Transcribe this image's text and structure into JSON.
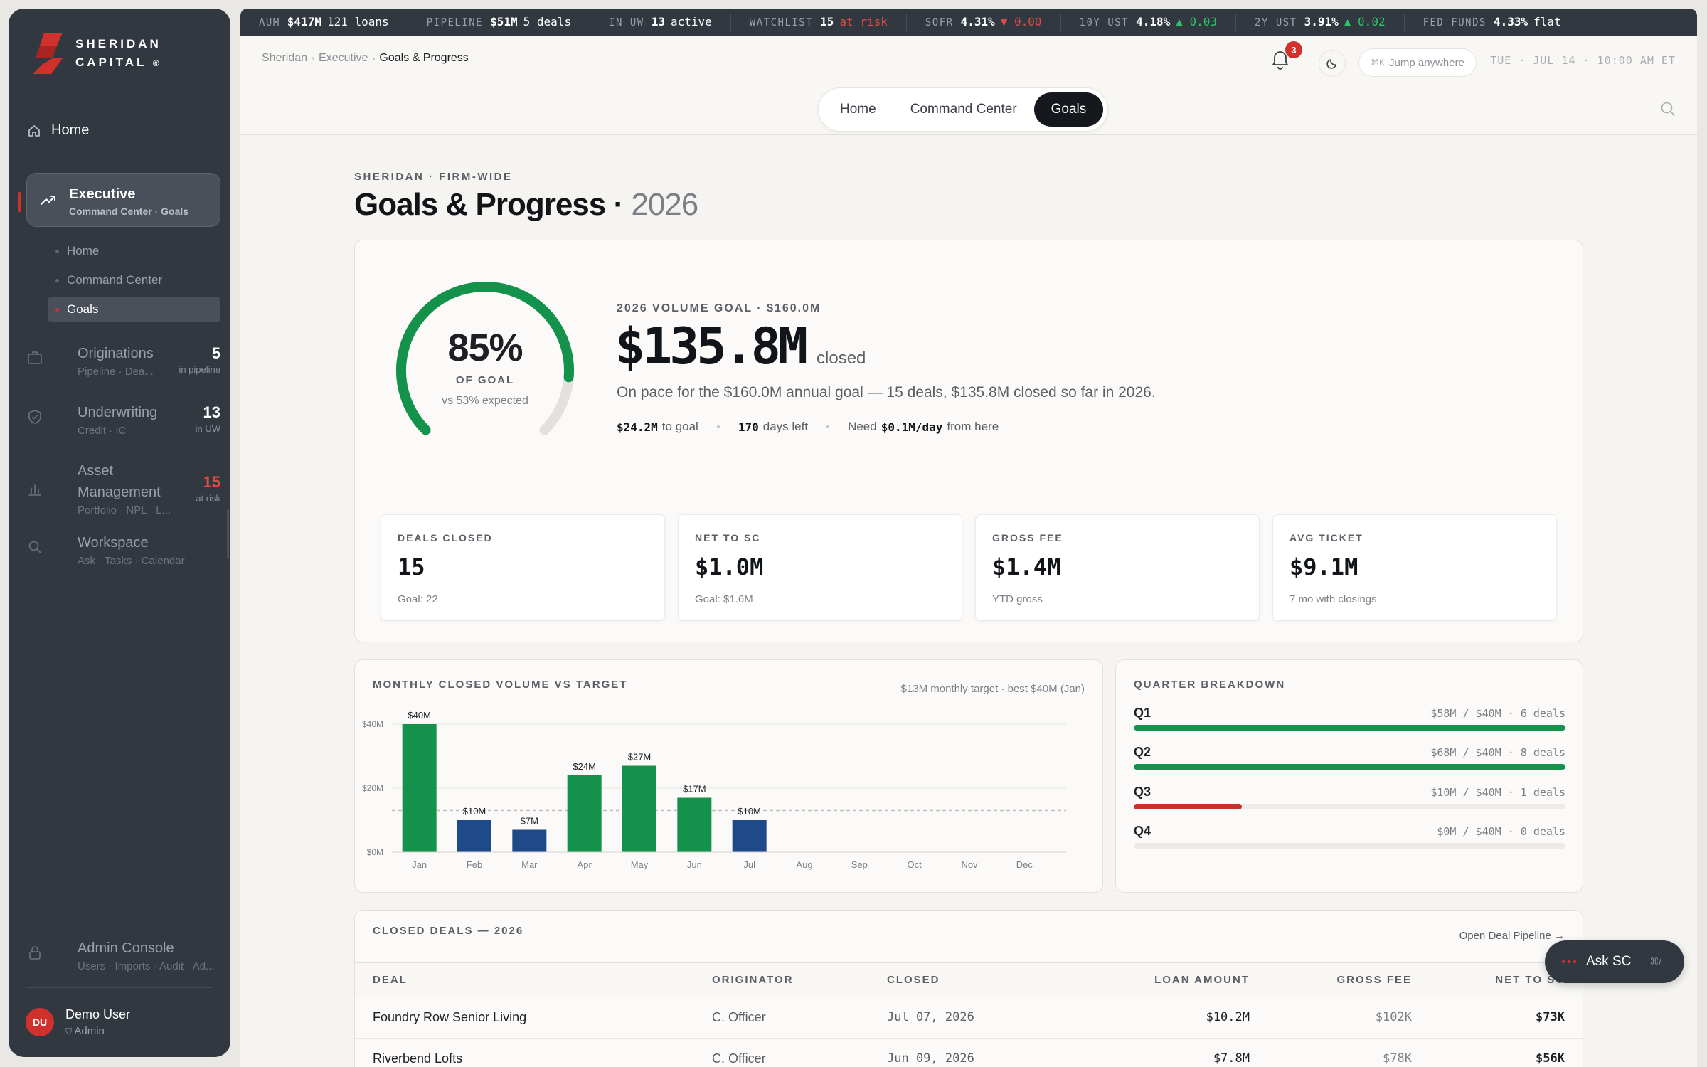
{
  "brand": {
    "line1": "SHERIDAN",
    "line2": "CAPITAL",
    "mark": "®"
  },
  "sidebar": {
    "home": "Home",
    "executive": {
      "label": "Executive",
      "sub": "Command Center · Goals"
    },
    "subitems": [
      "Home",
      "Command Center",
      "Goals"
    ],
    "groups": [
      {
        "label": "Originations",
        "sub": "Pipeline · Dea...",
        "count": "5",
        "count_label": "in pipeline"
      },
      {
        "label": "Underwriting",
        "sub": "Credit · IC",
        "count": "13",
        "count_label": "in UW"
      },
      {
        "label": "Asset Management",
        "sub": "Portfolio · NPL · L...",
        "count": "15",
        "count_label": "at risk"
      },
      {
        "label": "Workspace",
        "sub": "Ask · Tasks · Calendar",
        "count": "",
        "count_label": ""
      }
    ],
    "admin": {
      "label": "Admin Console",
      "sub": "Users · Imports · Audit · Ad..."
    },
    "user": {
      "initials": "DU",
      "name": "Demo User",
      "role": "Admin"
    }
  },
  "ticker": [
    {
      "label": "AUM",
      "value": "$417M",
      "extra": "121 loans",
      "tone": ""
    },
    {
      "label": "PIPELINE",
      "value": "$51M",
      "extra": "5 deals",
      "tone": ""
    },
    {
      "label": "IN UW",
      "value": "13",
      "extra": "active",
      "tone": ""
    },
    {
      "label": "WATCHLIST",
      "value": "15",
      "extra": "at risk",
      "tone": "red"
    },
    {
      "label": "SOFR",
      "value": "4.31%",
      "extra": "▼ 0.00",
      "tone": "red"
    },
    {
      "label": "10Y UST",
      "value": "4.18%",
      "extra": "▲ 0.03",
      "tone": "grn"
    },
    {
      "label": "2Y UST",
      "value": "3.91%",
      "extra": "▲ 0.02",
      "tone": "grn"
    },
    {
      "label": "FED FUNDS",
      "value": "4.33%",
      "extra": "flat",
      "tone": ""
    }
  ],
  "topbar": {
    "crumbs": [
      "Sheridan",
      "Executive",
      "Goals & Progress"
    ],
    "notifications": "3",
    "jump": "Jump anywhere",
    "jump_kbd": "⌘K",
    "clock": "TUE · JUL 14 · 10:00 AM ET",
    "tabs": [
      "Home",
      "Command Center",
      "Goals"
    ],
    "active_tab": "Goals"
  },
  "page": {
    "eyebrow": "SHERIDAN · FIRM-WIDE",
    "title": "Goals & Progress · ",
    "year": "2026"
  },
  "goal": {
    "pct_value": 0.85,
    "expected_value": 0.53,
    "pct": "85%",
    "of_goal": "OF GOAL",
    "vs": "vs 53% expected",
    "label": "2026 VOLUME GOAL · $160.0M",
    "amount": "$135.8M",
    "closed": "closed",
    "desc": "On pace for the $160.0M annual goal — 15 deals, $135.8M closed so far in 2026.",
    "to_goal_v": "$24.2M",
    "to_goal_l": "to goal",
    "days_v": "170",
    "days_l": "days left",
    "need_l": "Need",
    "need_v": "$0.1M/day",
    "need_l2": "from here"
  },
  "kpis": [
    {
      "label": "DEALS CLOSED",
      "value": "15",
      "sub": "Goal: 22"
    },
    {
      "label": "NET TO SC",
      "value": "$1.0M",
      "sub": "Goal: $1.6M"
    },
    {
      "label": "GROSS FEE",
      "value": "$1.4M",
      "sub": "YTD gross"
    },
    {
      "label": "AVG TICKET",
      "value": "$9.1M",
      "sub": "7 mo with closings"
    }
  ],
  "chart_title": "MONTHLY CLOSED VOLUME VS TARGET",
  "chart_note": "$13M monthly target · best $40M (Jan)",
  "chart_data": {
    "type": "bar",
    "title": "MONTHLY CLOSED VOLUME VS TARGET",
    "categories": [
      "Jan",
      "Feb",
      "Mar",
      "Apr",
      "May",
      "Jun",
      "Jul",
      "Aug",
      "Sep",
      "Oct",
      "Nov",
      "Dec"
    ],
    "values": [
      40,
      10,
      7,
      24,
      27,
      17,
      10,
      null,
      null,
      null,
      null,
      null
    ],
    "labels": [
      "$40M",
      "$10M",
      "$7M",
      "$24M",
      "$27M",
      "$17M",
      "$10M",
      "",
      "",
      "",
      "",
      ""
    ],
    "above_target": [
      true,
      false,
      false,
      true,
      true,
      true,
      false,
      false,
      false,
      false,
      false,
      false
    ],
    "target": 13,
    "ylim": [
      0,
      40
    ],
    "yticks": [
      "$0M",
      "$20M",
      "$40M"
    ],
    "ytick_values": [
      0,
      20,
      40
    ],
    "colors": {
      "above": "#14914a",
      "below": "#1f4a8a",
      "target": "#bdbdbd"
    },
    "grid": true
  },
  "quarters": {
    "title": "QUARTER BREAKDOWN",
    "rows": [
      {
        "q": "Q1",
        "info": "$58M / $40M · 6 deals",
        "progress": 1.0,
        "color": "#14914a"
      },
      {
        "q": "Q2",
        "info": "$68M / $40M · 8 deals",
        "progress": 1.0,
        "color": "#14914a"
      },
      {
        "q": "Q3",
        "info": "$10M / $40M · 1 deals",
        "progress": 0.25,
        "color": "#c8322d"
      },
      {
        "q": "Q4",
        "info": "$0M / $40M · 0 deals",
        "progress": 0.0,
        "color": "#c8322d"
      }
    ]
  },
  "deals": {
    "title": "CLOSED DEALS — 2026",
    "link": "Open Deal Pipeline →",
    "columns": [
      "DEAL",
      "ORIGINATOR",
      "CLOSED",
      "LOAN AMOUNT",
      "GROSS FEE",
      "NET TO SC"
    ],
    "rows": [
      [
        "Foundry Row Senior Living",
        "C. Officer",
        "Jul 07, 2026",
        "$10.2M",
        "$102K",
        "$73K"
      ],
      [
        "Riverbend Lofts",
        "C. Officer",
        "Jun 09, 2026",
        "$7.8M",
        "$78K",
        "$56K"
      ]
    ]
  },
  "ask": {
    "label": "Ask SC",
    "kbd": "⌘/"
  }
}
